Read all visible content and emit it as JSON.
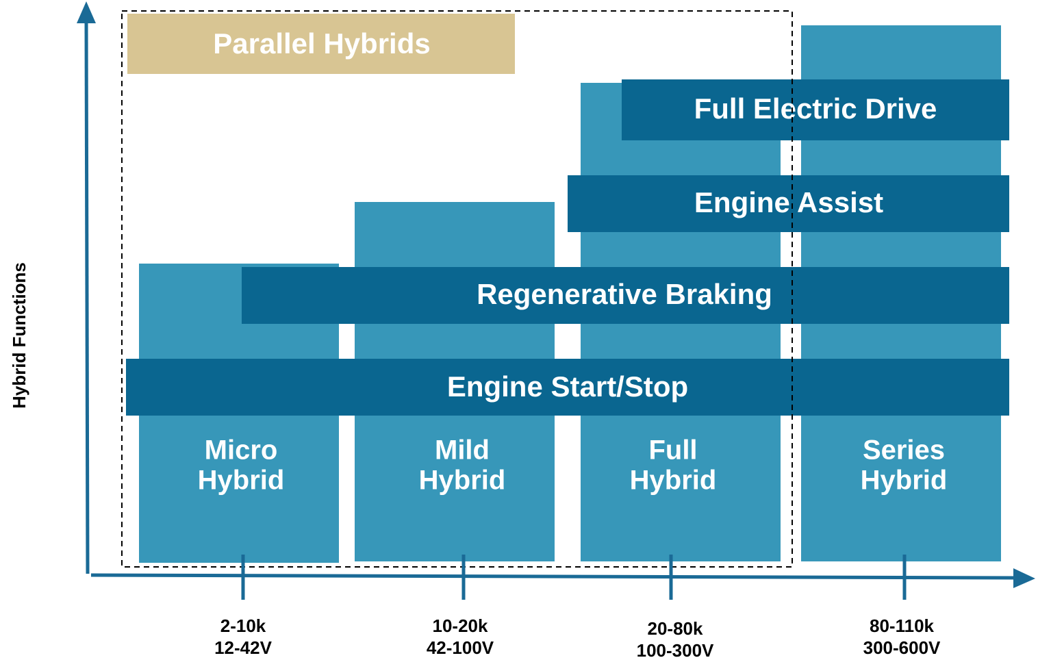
{
  "y_axis_label": "Hybrid Functions",
  "group_label": "Parallel Hybrids",
  "columns": [
    {
      "label": [
        "Micro",
        "Hybrid"
      ],
      "range": [
        "2-10k",
        "12-42V"
      ]
    },
    {
      "label": [
        "Mild",
        "Hybrid"
      ],
      "range": [
        "10-20k",
        "42-100V"
      ]
    },
    {
      "label": [
        "Full",
        "Hybrid"
      ],
      "range": [
        "20-80k",
        "100-300V"
      ]
    },
    {
      "label": [
        "Series",
        "Hybrid"
      ],
      "range": [
        "80-110k",
        "300-600V"
      ]
    }
  ],
  "functions": [
    "Full Electric Drive",
    "Engine Assist",
    "Regenerative Braking",
    "Engine Start/Stop"
  ]
}
